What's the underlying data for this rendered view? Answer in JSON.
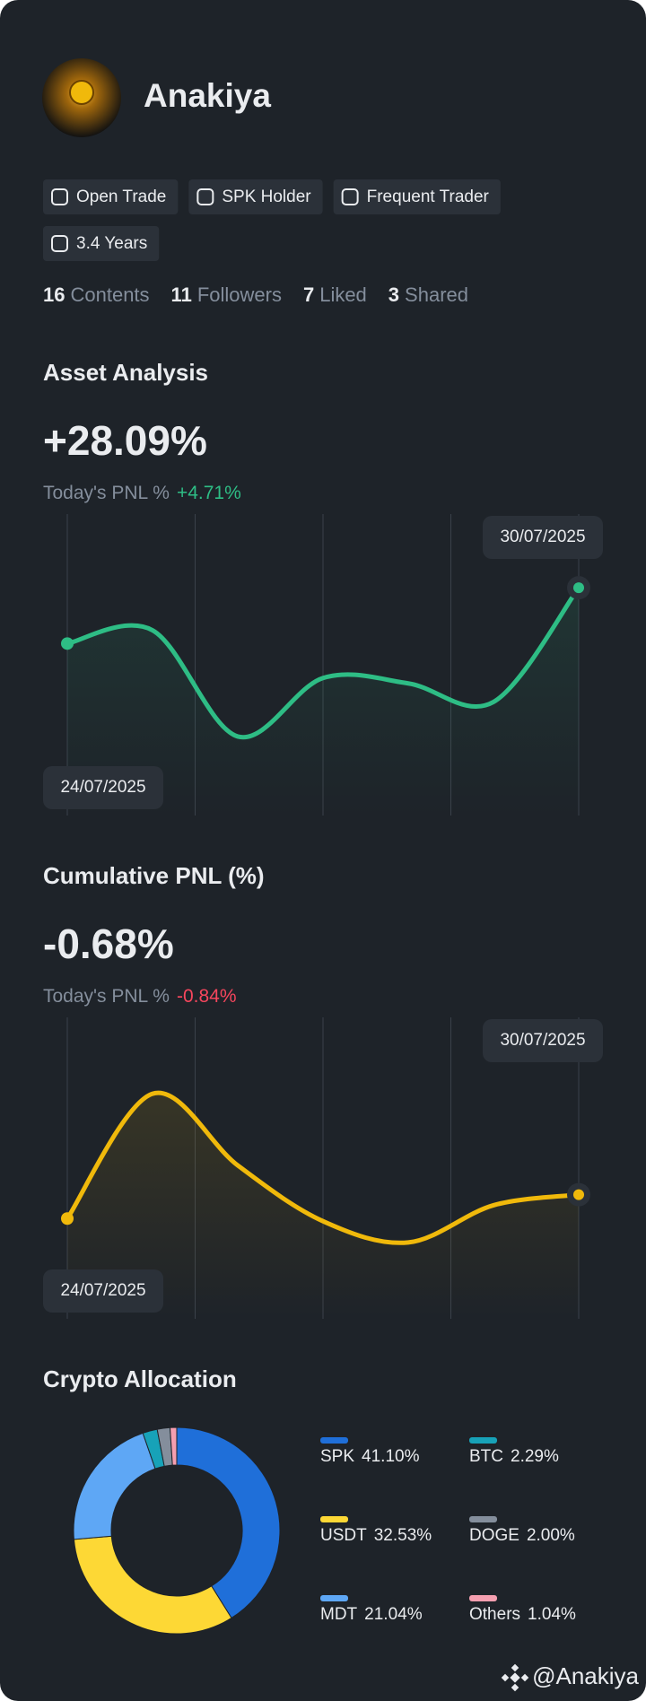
{
  "profile": {
    "name": "Anakiya",
    "tags": [
      "Open Trade",
      "SPK Holder",
      "Frequent Trader",
      "3.4 Years"
    ],
    "stats": [
      {
        "count": 16,
        "label": "Contents"
      },
      {
        "count": 11,
        "label": "Followers"
      },
      {
        "count": 7,
        "label": "Liked"
      },
      {
        "count": 3,
        "label": "Shared"
      }
    ]
  },
  "chart_data": [
    {
      "type": "line",
      "title": "Asset Analysis",
      "headline": "+28.09%",
      "subtitle": "Today's PNL %",
      "subtitle_value": "+4.71%",
      "categories": [
        "24/07/2025",
        null,
        null,
        null,
        null,
        null,
        "30/07/2025"
      ],
      "values": [
        58,
        63,
        23,
        45,
        43,
        36,
        79
      ],
      "color": "#2ebd85",
      "ylim": [
        0,
        100
      ]
    },
    {
      "type": "line",
      "title": "Cumulative PNL (%)",
      "headline": "-0.68%",
      "subtitle": "Today's PNL %",
      "subtitle_value": "-0.84%",
      "categories": [
        "24/07/2025",
        null,
        null,
        null,
        null,
        null,
        "30/07/2025"
      ],
      "values": [
        31,
        78,
        51,
        30,
        22,
        36,
        40
      ],
      "color": "#f0b90b",
      "ylim": [
        0,
        100
      ]
    },
    {
      "type": "pie",
      "title": "Crypto Allocation",
      "categories": [
        "SPK",
        "USDT",
        "MDT",
        "BTC",
        "DOGE",
        "Others"
      ],
      "values": [
        41.1,
        32.53,
        21.04,
        2.29,
        2.0,
        1.04
      ],
      "value_labels": [
        "41.10%",
        "32.53%",
        "21.04%",
        "2.29%",
        "2.00%",
        "1.04%"
      ],
      "colors": [
        "#1f6fd9",
        "#fdd835",
        "#5ea7f5",
        "#17a2b8",
        "#848e9c",
        "#f59fb0"
      ]
    }
  ],
  "footer": "@Anakiya"
}
